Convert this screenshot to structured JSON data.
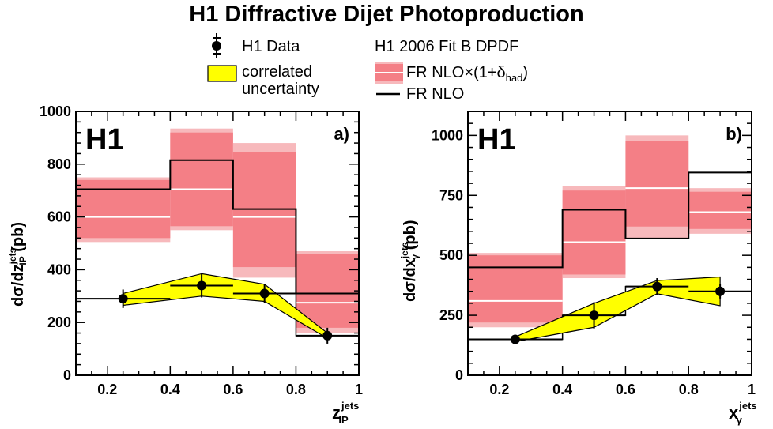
{
  "title": "H1 Diffractive Dijet Photoproduction",
  "legend": {
    "data_label": "H1 Data",
    "correlated_line1": "correlated",
    "correlated_line2": "uncertainty",
    "dpdf_label": "H1 2006 Fit B DPDF",
    "fr_had_main": "FR NLO×(1+δ",
    "fr_had_sub": "had",
    "fr_had_close": ")",
    "fr_nlo": "FR NLO"
  },
  "colors": {
    "band_outer": "#f7b9bc",
    "band_inner": "#f47f86",
    "corr_fill": "#ffff00",
    "line": "#000000",
    "center_line": "#ffffff"
  },
  "chart_data": [
    {
      "type": "bar",
      "panel_label": "a)",
      "h1_label": "H1",
      "ylabel_main": "dσ/dz",
      "ylabel_sup": "jets",
      "ylabel_sub": "IP",
      "ylabel_unit": " (pb)",
      "xlabel_main": "z",
      "xlabel_sup": "jets",
      "xlabel_sub": "IP",
      "xlim": [
        0.1,
        1.0
      ],
      "ylim": [
        0,
        1000
      ],
      "xticks": [
        0.2,
        0.4,
        0.6,
        0.8,
        1.0
      ],
      "xtick_labels": [
        "0.2",
        "0.4",
        "0.6",
        "0.8",
        "1"
      ],
      "yticks": [
        0,
        200,
        400,
        600,
        800,
        1000
      ],
      "ytick_labels": [
        "0",
        "200",
        "400",
        "600",
        "800",
        "1000"
      ],
      "bins": [
        [
          0.1,
          0.4
        ],
        [
          0.4,
          0.6
        ],
        [
          0.6,
          0.8
        ],
        [
          0.8,
          1.0
        ]
      ],
      "fr_nlo": [
        705,
        815,
        630,
        310
      ],
      "fr_had_center": [
        600,
        705,
        600,
        275
      ],
      "fr_had_band_outer": [
        [
          505,
          750
        ],
        [
          550,
          935
        ],
        [
          370,
          880
        ],
        [
          160,
          470
        ]
      ],
      "fr_had_band_inner": [
        [
          520,
          740
        ],
        [
          565,
          920
        ],
        [
          410,
          845
        ],
        [
          180,
          460
        ]
      ],
      "data_hist": [
        290,
        290,
        340,
        310,
        150
      ],
      "data_hist_edges": [
        0.1,
        0.25,
        0.4,
        0.6,
        0.8,
        1.0
      ],
      "data_points": [
        {
          "x": 0.25,
          "y": 290,
          "xerr": 0.15,
          "yerr": 35
        },
        {
          "x": 0.5,
          "y": 340,
          "xerr": 0.1,
          "yerr": 45
        },
        {
          "x": 0.7,
          "y": 310,
          "xerr": 0.1,
          "yerr": 35
        },
        {
          "x": 0.9,
          "y": 150,
          "xerr": 0.1,
          "yerr": 30
        }
      ],
      "corr_band_x": [
        0.25,
        0.5,
        0.7,
        0.9
      ],
      "corr_band_upper": [
        310,
        385,
        345,
        160
      ],
      "corr_band_lower": [
        265,
        300,
        280,
        140
      ]
    },
    {
      "type": "bar",
      "panel_label": "b)",
      "h1_label": "H1",
      "ylabel_main": "dσ/dx",
      "ylabel_sup": "jets",
      "ylabel_sub": "γ",
      "ylabel_unit": " (pb)",
      "xlabel_main": "x",
      "xlabel_sup": "jets",
      "xlabel_sub": "γ",
      "xlim": [
        0.1,
        1.0
      ],
      "ylim": [
        0,
        1100
      ],
      "xticks": [
        0.2,
        0.4,
        0.6,
        0.8,
        1.0
      ],
      "xtick_labels": [
        "0.2",
        "0.4",
        "0.6",
        "0.8",
        "1"
      ],
      "yticks": [
        0,
        250,
        500,
        750,
        1000
      ],
      "ytick_labels": [
        "0",
        "250",
        "500",
        "750",
        "1000"
      ],
      "bins": [
        [
          0.1,
          0.4
        ],
        [
          0.4,
          0.6
        ],
        [
          0.6,
          0.8
        ],
        [
          0.8,
          1.0
        ]
      ],
      "fr_nlo": [
        450,
        690,
        570,
        845
      ],
      "fr_had_center": [
        310,
        555,
        780,
        680
      ],
      "fr_had_band_outer": [
        [
          200,
          510
        ],
        [
          405,
          790
        ],
        [
          570,
          1000
        ],
        [
          590,
          780
        ]
      ],
      "fr_had_band_inner": [
        [
          220,
          500
        ],
        [
          420,
          770
        ],
        [
          620,
          975
        ],
        [
          610,
          765
        ]
      ],
      "data_hist": [
        150,
        150,
        250,
        370,
        350
      ],
      "data_hist_edges": [
        0.1,
        0.25,
        0.4,
        0.6,
        0.8,
        1.0
      ],
      "data_points": [
        {
          "x": 0.25,
          "y": 150,
          "xerr": 0.15,
          "yerr": 10
        },
        {
          "x": 0.5,
          "y": 250,
          "xerr": 0.1,
          "yerr": 55
        },
        {
          "x": 0.7,
          "y": 370,
          "xerr": 0.1,
          "yerr": 35
        },
        {
          "x": 0.9,
          "y": 350,
          "xerr": 0.1,
          "yerr": 30
        }
      ],
      "corr_band_x": [
        0.25,
        0.5,
        0.7,
        0.9
      ],
      "corr_band_upper": [
        160,
        300,
        395,
        410
      ],
      "corr_band_lower": [
        140,
        200,
        340,
        290
      ]
    }
  ]
}
